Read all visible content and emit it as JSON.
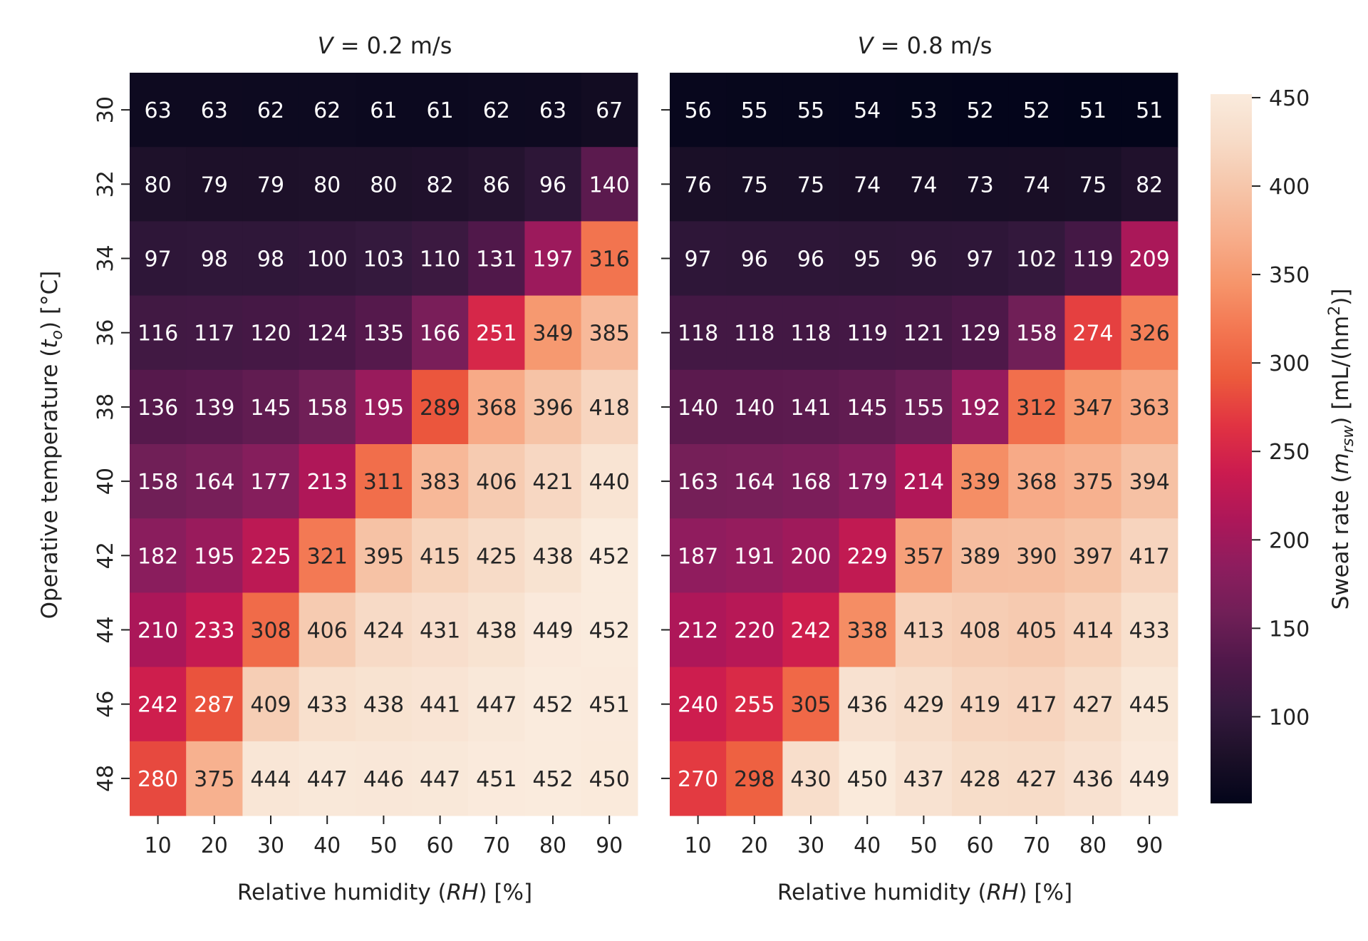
{
  "chart_data": [
    {
      "type": "heatmap",
      "title": "V = 0.2 m/s",
      "title_parts": {
        "var": "V",
        "rest": " = 0.2 m/s"
      },
      "xlabel": "Relative humidity (RH) [%]",
      "xlabel_parts": {
        "pre": "Relative humidity (",
        "var": "RH",
        "post": ") [%]"
      },
      "ylabel": "Operative temperature (t_o) [°C]",
      "ylabel_parts": {
        "pre": "Operative temperature (",
        "var": "t",
        "sub": "o",
        "post": ") [°C]"
      },
      "x_ticks": [
        "10",
        "20",
        "30",
        "40",
        "50",
        "60",
        "70",
        "80",
        "90"
      ],
      "y_ticks": [
        "30",
        "32",
        "34",
        "36",
        "38",
        "40",
        "42",
        "44",
        "46",
        "48"
      ],
      "values": [
        [
          63,
          63,
          62,
          62,
          61,
          61,
          62,
          63,
          67
        ],
        [
          80,
          79,
          79,
          80,
          80,
          82,
          86,
          96,
          140
        ],
        [
          97,
          98,
          98,
          100,
          103,
          110,
          131,
          197,
          316
        ],
        [
          116,
          117,
          120,
          124,
          135,
          166,
          251,
          349,
          385
        ],
        [
          136,
          139,
          145,
          158,
          195,
          289,
          368,
          396,
          418
        ],
        [
          158,
          164,
          177,
          213,
          311,
          383,
          406,
          421,
          440
        ],
        [
          182,
          195,
          225,
          321,
          395,
          415,
          425,
          438,
          452
        ],
        [
          210,
          233,
          308,
          406,
          424,
          431,
          438,
          449,
          452
        ],
        [
          242,
          287,
          409,
          433,
          438,
          441,
          447,
          452,
          451
        ],
        [
          280,
          375,
          444,
          447,
          446,
          447,
          451,
          452,
          450
        ]
      ]
    },
    {
      "type": "heatmap",
      "title": "V = 0.8 m/s",
      "title_parts": {
        "var": "V",
        "rest": " = 0.8 m/s"
      },
      "xlabel": "Relative humidity (RH) [%]",
      "xlabel_parts": {
        "pre": "Relative humidity (",
        "var": "RH",
        "post": ") [%]"
      },
      "x_ticks": [
        "10",
        "20",
        "30",
        "40",
        "50",
        "60",
        "70",
        "80",
        "90"
      ],
      "y_ticks": [
        "30",
        "32",
        "34",
        "36",
        "38",
        "40",
        "42",
        "44",
        "46",
        "48"
      ],
      "values": [
        [
          56,
          55,
          55,
          54,
          53,
          52,
          52,
          51,
          51
        ],
        [
          76,
          75,
          75,
          74,
          74,
          73,
          74,
          75,
          82
        ],
        [
          97,
          96,
          96,
          95,
          96,
          97,
          102,
          119,
          209
        ],
        [
          118,
          118,
          118,
          119,
          121,
          129,
          158,
          274,
          326
        ],
        [
          140,
          140,
          141,
          145,
          155,
          192,
          312,
          347,
          363
        ],
        [
          163,
          164,
          168,
          179,
          214,
          339,
          368,
          375,
          394
        ],
        [
          187,
          191,
          200,
          229,
          357,
          389,
          390,
          397,
          417
        ],
        [
          212,
          220,
          242,
          338,
          413,
          408,
          405,
          414,
          433
        ],
        [
          240,
          255,
          305,
          436,
          429,
          419,
          417,
          427,
          445
        ],
        [
          270,
          298,
          430,
          450,
          437,
          428,
          427,
          436,
          449
        ]
      ]
    }
  ],
  "colorbar": {
    "label": "Sweat rate (m_rsw) [mL/(hm²)]",
    "label_parts": {
      "pre": "Sweat rate (",
      "var": "m",
      "sub": "rsw",
      "mid": ") [mL/(hm",
      "sup": "2",
      "post": ")]"
    },
    "vmin": 51,
    "vmax": 452,
    "ticks": [
      100,
      150,
      200,
      250,
      300,
      350,
      400,
      450
    ],
    "colormap": "rocket",
    "colormap_stops": [
      "#03051a",
      "#1c1028",
      "#35193e",
      "#50184a",
      "#701f57",
      "#8d1d5e",
      "#ad1759",
      "#cb1b4f",
      "#e13342",
      "#ec5a3c",
      "#f37651",
      "#f6956b",
      "#f7ae8c",
      "#f6c5a9",
      "#f7dbc7",
      "#faebdd"
    ]
  }
}
